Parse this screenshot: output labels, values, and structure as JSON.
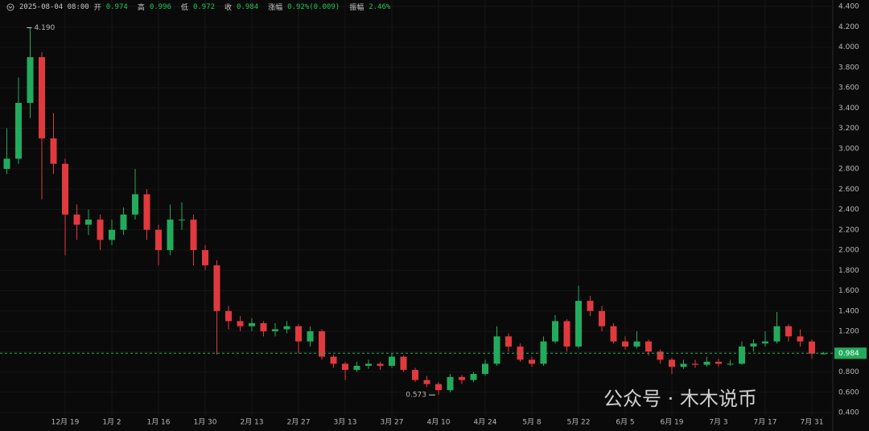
{
  "chart_data": {
    "type": "candlestick",
    "header": {
      "time": "2025-08-04 08:00",
      "items": [
        {
          "label": "开",
          "value": "0.974"
        },
        {
          "label": "高",
          "value": "0.996"
        },
        {
          "label": "低",
          "value": "0.972"
        },
        {
          "label": "收",
          "value": "0.984"
        },
        {
          "label": "涨幅",
          "value": "0.92%(0.009)"
        },
        {
          "label": "振幅",
          "value": "2.46%"
        }
      ]
    },
    "categories": [
      null,
      null,
      null,
      null,
      null,
      "12月 19",
      null,
      null,
      null,
      "1月 2",
      null,
      null,
      null,
      "1月 16",
      null,
      null,
      null,
      "1月 30",
      null,
      null,
      null,
      "2月 13",
      null,
      null,
      null,
      "2月 27",
      null,
      null,
      null,
      "3月 13",
      null,
      null,
      null,
      "3月 27",
      null,
      null,
      null,
      "4月 10",
      null,
      null,
      null,
      "4月 24",
      null,
      null,
      null,
      "5月 8",
      null,
      null,
      null,
      "5月 22",
      null,
      null,
      null,
      "6月 5",
      null,
      null,
      null,
      "6月 19",
      null,
      null,
      null,
      "7月 3",
      null,
      null,
      null,
      "7月 17",
      null,
      null,
      null,
      "7月 31",
      null
    ],
    "open": [
      2.8,
      2.9,
      3.45,
      3.9,
      3.1,
      2.85,
      2.35,
      2.25,
      2.3,
      2.1,
      2.2,
      2.35,
      2.55,
      2.2,
      2.0,
      2.3,
      2.3,
      2.0,
      1.85,
      1.4,
      1.3,
      1.25,
      1.28,
      1.2,
      1.22,
      1.25,
      1.1,
      1.2,
      0.95,
      0.88,
      0.82,
      0.86,
      0.88,
      0.86,
      0.95,
      0.82,
      0.72,
      0.68,
      0.62,
      0.75,
      0.72,
      0.78,
      0.88,
      1.15,
      1.05,
      0.92,
      0.88,
      1.1,
      1.3,
      1.05,
      1.5,
      1.4,
      1.25,
      1.1,
      1.05,
      1.1,
      1.0,
      0.92,
      0.85,
      0.88,
      0.87,
      0.9,
      0.88,
      0.88,
      1.05,
      1.08,
      1.1,
      1.25,
      1.15,
      1.1,
      0.974
    ],
    "high": [
      3.2,
      3.7,
      4.19,
      3.95,
      3.35,
      2.9,
      2.45,
      2.4,
      2.35,
      2.3,
      2.42,
      2.8,
      2.6,
      2.25,
      2.45,
      2.47,
      2.35,
      2.05,
      1.9,
      1.45,
      1.35,
      1.33,
      1.3,
      1.28,
      1.3,
      1.27,
      1.25,
      1.22,
      0.97,
      0.9,
      0.9,
      0.92,
      0.9,
      0.98,
      0.96,
      0.84,
      0.76,
      0.7,
      0.78,
      0.77,
      0.8,
      0.92,
      1.25,
      1.18,
      1.08,
      0.95,
      1.15,
      1.36,
      1.32,
      1.65,
      1.55,
      1.45,
      1.28,
      1.15,
      1.2,
      1.12,
      1.02,
      0.94,
      0.92,
      0.92,
      0.95,
      0.93,
      0.92,
      1.1,
      1.12,
      1.2,
      1.39,
      1.27,
      1.22,
      1.12,
      0.996
    ],
    "low": [
      2.75,
      2.85,
      3.3,
      2.5,
      2.75,
      1.95,
      2.1,
      2.15,
      2.0,
      2.05,
      2.15,
      2.3,
      2.1,
      1.85,
      1.95,
      2.2,
      1.85,
      1.8,
      0.97,
      1.22,
      1.2,
      1.2,
      1.15,
      1.15,
      1.18,
      0.98,
      1.05,
      0.92,
      0.84,
      0.72,
      0.8,
      0.83,
      0.82,
      0.84,
      0.8,
      0.7,
      0.65,
      0.573,
      0.6,
      0.68,
      0.7,
      0.76,
      0.86,
      1.0,
      0.9,
      0.85,
      0.86,
      1.08,
      1.0,
      1.03,
      1.35,
      1.2,
      1.08,
      1.02,
      1.03,
      0.96,
      0.88,
      0.78,
      0.83,
      0.84,
      0.85,
      0.85,
      0.86,
      0.87,
      1.0,
      1.05,
      1.08,
      1.1,
      1.05,
      0.93,
      0.972
    ],
    "close": [
      2.9,
      3.45,
      3.9,
      3.1,
      2.85,
      2.35,
      2.25,
      2.3,
      2.1,
      2.2,
      2.35,
      2.55,
      2.2,
      2.0,
      2.3,
      2.3,
      2.0,
      1.85,
      1.4,
      1.3,
      1.25,
      1.28,
      1.2,
      1.22,
      1.25,
      1.1,
      1.2,
      0.95,
      0.88,
      0.82,
      0.86,
      0.88,
      0.86,
      0.95,
      0.82,
      0.72,
      0.68,
      0.62,
      0.75,
      0.72,
      0.78,
      0.88,
      1.15,
      1.05,
      0.92,
      0.88,
      1.1,
      1.3,
      1.05,
      1.5,
      1.4,
      1.25,
      1.1,
      1.05,
      1.1,
      1.0,
      0.92,
      0.85,
      0.88,
      0.87,
      0.9,
      0.88,
      0.88,
      1.05,
      1.08,
      1.1,
      1.25,
      1.15,
      1.1,
      0.98,
      0.984
    ],
    "up_color": "#22ab5c",
    "down_color": "#e0393e",
    "ylim": [
      0.4,
      4.4
    ],
    "yticks": [
      {
        "value": 0.4,
        "label": "0.400"
      },
      {
        "value": 0.6,
        "label": "0.600"
      },
      {
        "value": 0.8,
        "label": "0.800"
      },
      {
        "value": 1.0,
        "label": "1.000"
      },
      {
        "value": 1.2,
        "label": "1.200"
      },
      {
        "value": 1.4,
        "label": "1.400"
      },
      {
        "value": 1.6,
        "label": "1.600"
      },
      {
        "value": 1.8,
        "label": "1.800"
      },
      {
        "value": 2.0,
        "label": "2.000"
      },
      {
        "value": 2.2,
        "label": "2.200"
      },
      {
        "value": 2.4,
        "label": "2.400"
      },
      {
        "value": 2.6,
        "label": "2.600"
      },
      {
        "value": 2.8,
        "label": "2.800"
      },
      {
        "value": 3.0,
        "label": "3.000"
      },
      {
        "value": 3.2,
        "label": "3.200"
      },
      {
        "value": 3.4,
        "label": "3.400"
      },
      {
        "value": 3.6,
        "label": "3.600"
      },
      {
        "value": 3.8,
        "label": "3.800"
      },
      {
        "value": 4.0,
        "label": "4.000"
      },
      {
        "value": 4.2,
        "label": "4.200"
      },
      {
        "value": 4.4,
        "label": "4.400"
      }
    ],
    "grid": true,
    "last_price": 0.984,
    "max_marker": {
      "value": 4.19,
      "label": "4.190"
    },
    "min_marker": {
      "value": 0.573,
      "label": "0.573"
    },
    "watermark": "公众号 · 木木说币"
  }
}
